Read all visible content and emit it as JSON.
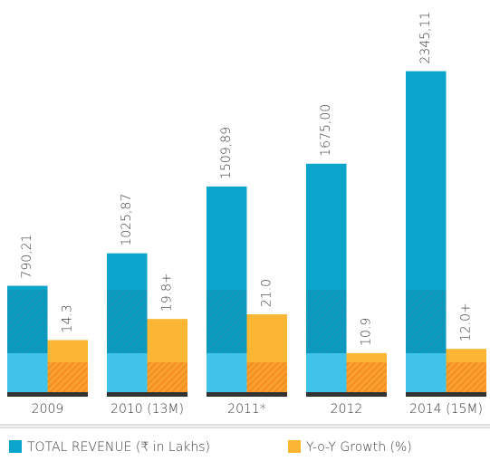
{
  "chart_data": {
    "type": "bar",
    "categories": [
      "2009",
      "2010 (13M)",
      "2011*",
      "2012",
      "2014 (15M)"
    ],
    "series": [
      {
        "name": "TOTAL REVENUE (₹ in Lakhs)",
        "color": "#0ba5cb",
        "values": [
          790.21,
          1025.87,
          1509.89,
          1675.0,
          2345.11
        ],
        "value_labels": [
          "790,21",
          "1025,87",
          "1509,89",
          "1675,00",
          "2345,11"
        ]
      },
      {
        "name": "Y-o-Y Growth (%)",
        "color": "#fbb634",
        "axis": "y2",
        "values": [
          14.3,
          19.8,
          21.0,
          10.9,
          12.0
        ],
        "value_labels": [
          "14.3",
          "19.8+",
          "21.0",
          "10.9",
          "12.0+"
        ]
      }
    ],
    "ylim": [
      0,
      2500
    ],
    "y2lim": [
      0,
      90
    ]
  }
}
